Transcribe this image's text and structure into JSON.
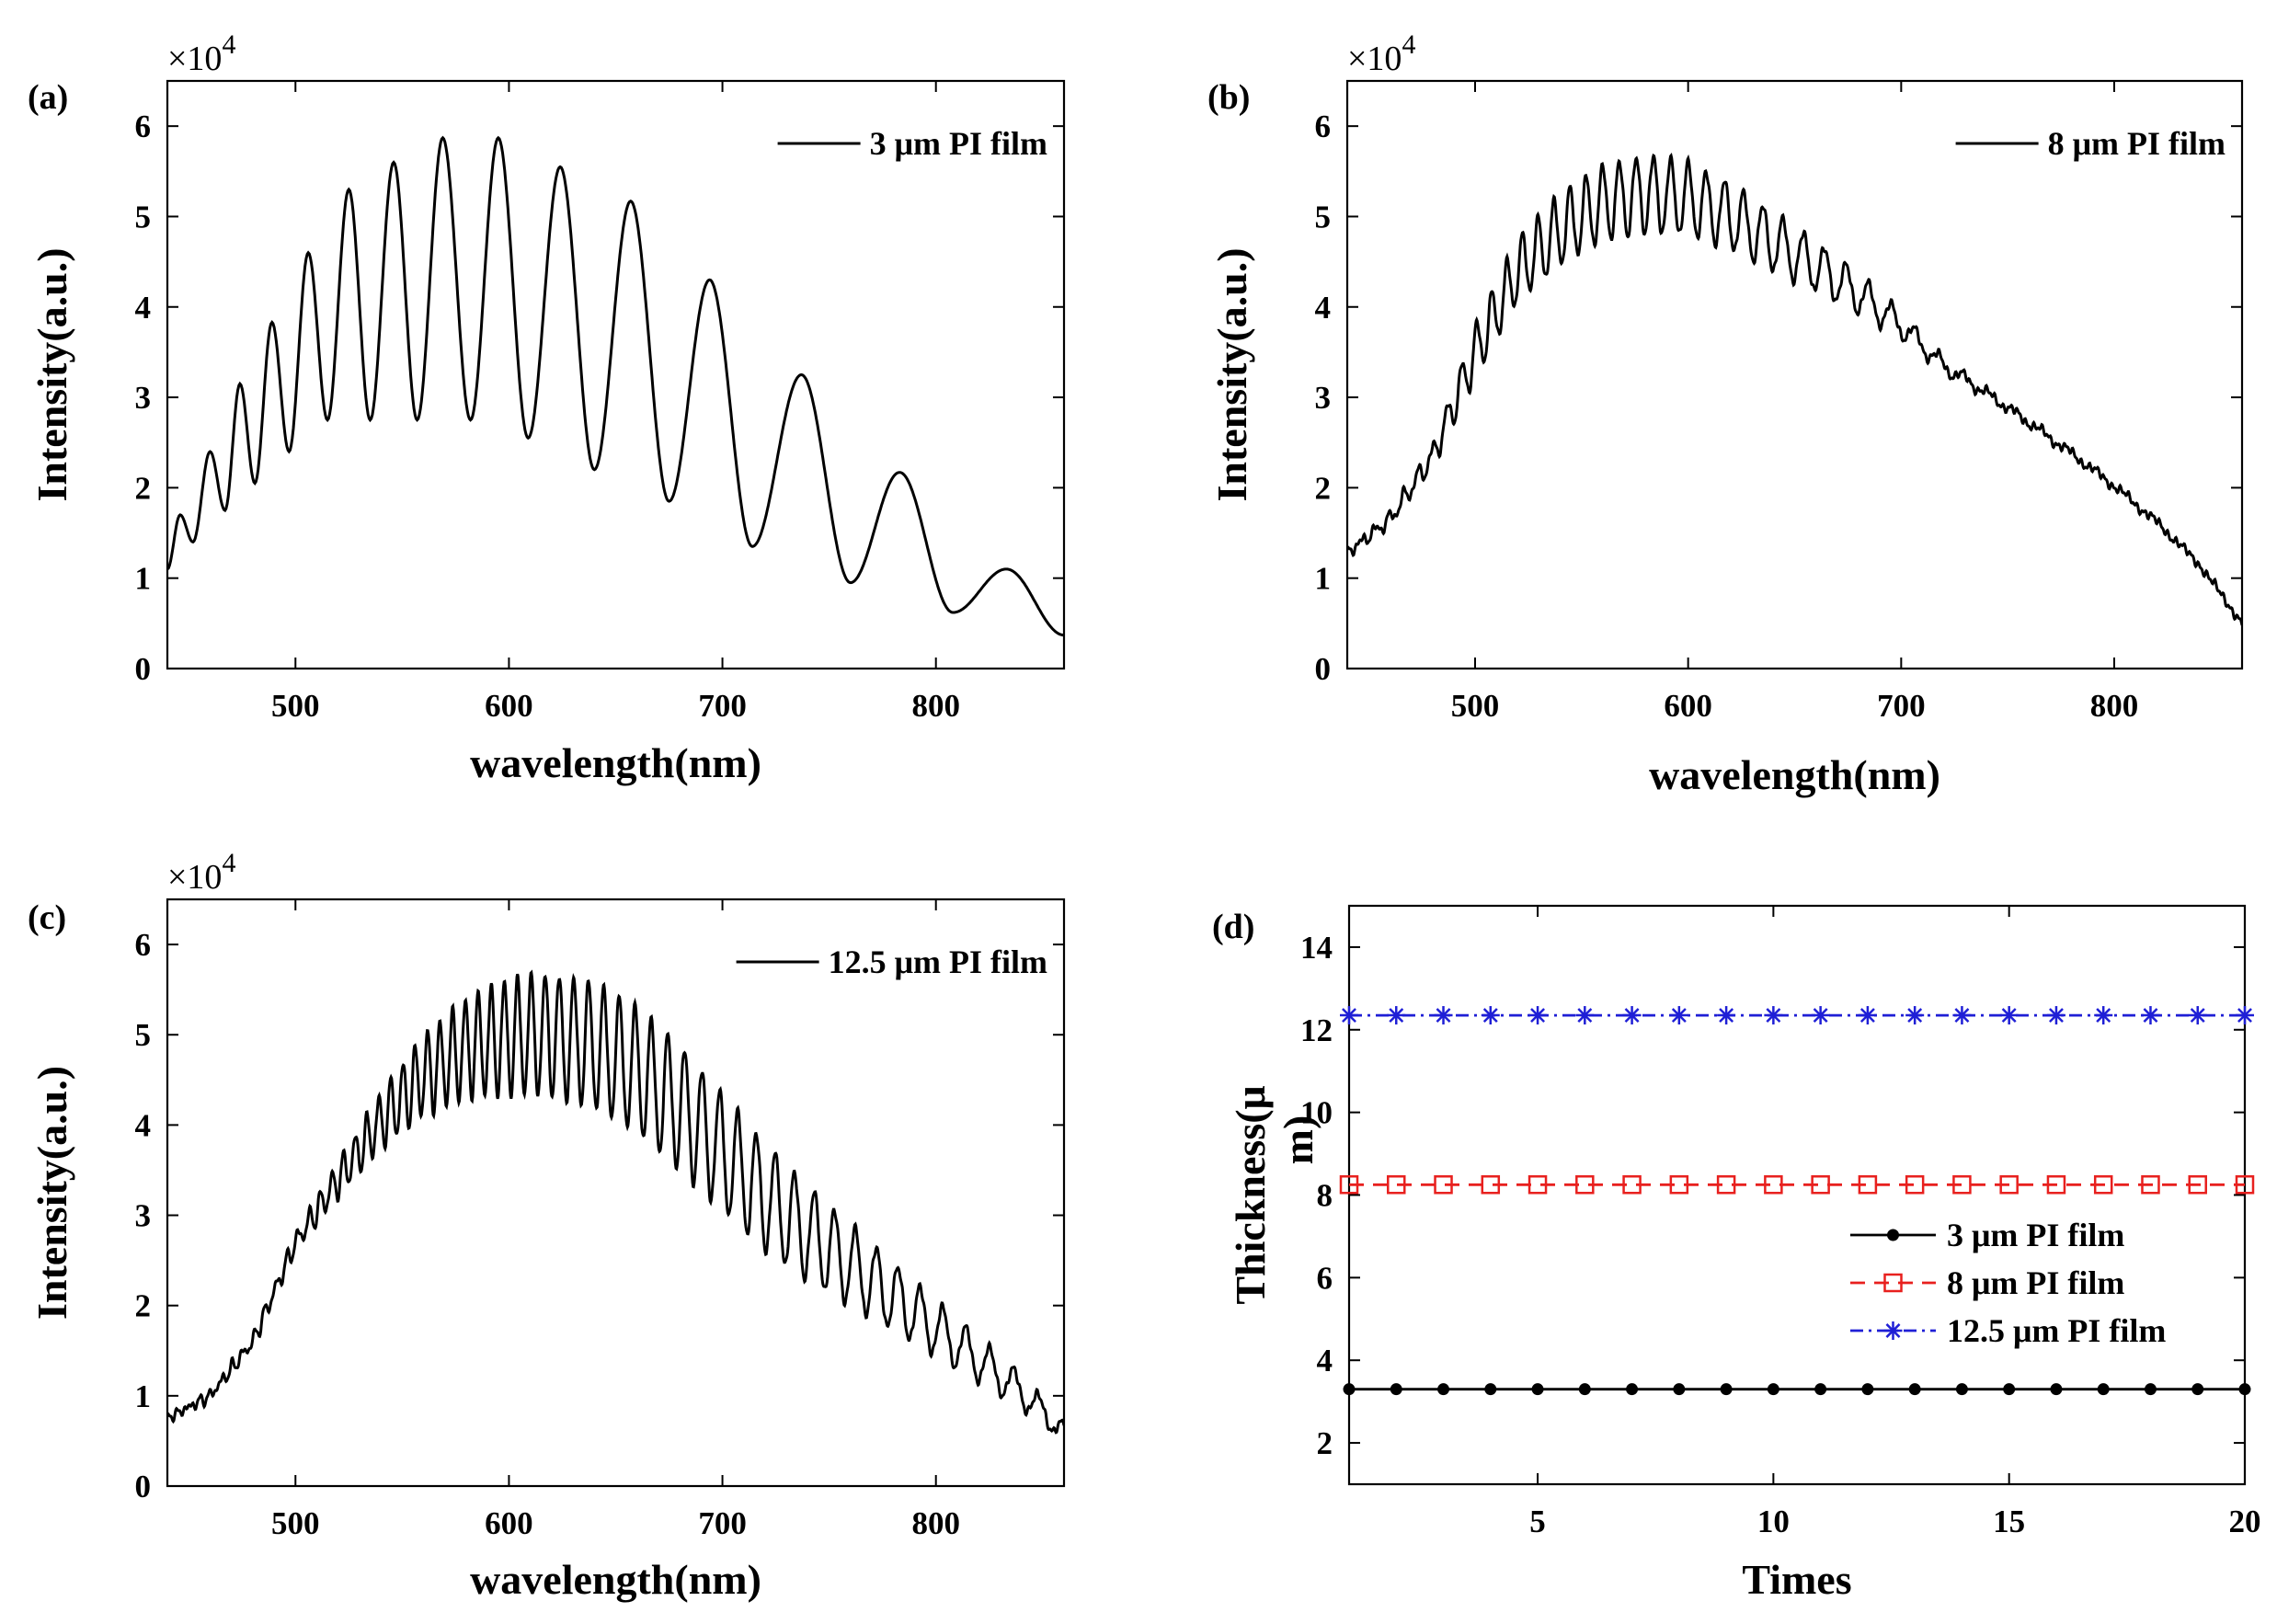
{
  "chart_data": [
    {
      "type": "line",
      "panel_label": "(a)",
      "xlabel": "wavelength(nm)",
      "ylabel": "Intensity(a.u.)",
      "y_multiplier": "×10",
      "y_multiplier_exp": "4",
      "xlim": [
        440,
        860
      ],
      "ylim": [
        0,
        6.5
      ],
      "xticks": [
        "500",
        "600",
        "700",
        "800"
      ],
      "xtick_values": [
        500,
        600,
        700,
        800
      ],
      "yticks": [
        "0",
        "1",
        "2",
        "3",
        "4",
        "5",
        "6"
      ],
      "ytick_values": [
        0,
        1,
        2,
        3,
        4,
        5,
        6
      ],
      "legend_position": "top-right",
      "series": [
        {
          "name": "3 μm PI film",
          "color": "#000000",
          "spectrum": {
            "peaks": [
              [
                446,
                1.7
              ],
              [
                460,
                2.4
              ],
              [
                474,
                3.15
              ],
              [
                489,
                3.83
              ],
              [
                506,
                4.6
              ],
              [
                525,
                5.3
              ],
              [
                546,
                5.6
              ],
              [
                569,
                5.87
              ],
              [
                595,
                5.87
              ],
              [
                624,
                5.55
              ],
              [
                657,
                5.17
              ],
              [
                694,
                4.3
              ],
              [
                737,
                3.25
              ],
              [
                783,
                2.17
              ],
              [
                833,
                1.1
              ]
            ],
            "valleys": [
              [
                440,
                1.1
              ],
              [
                452,
                1.4
              ],
              [
                467,
                1.75
              ],
              [
                481,
                2.05
              ],
              [
                497,
                2.4
              ],
              [
                515,
                2.75
              ],
              [
                535,
                2.75
              ],
              [
                557,
                2.75
              ],
              [
                582,
                2.75
              ],
              [
                609,
                2.55
              ],
              [
                640,
                2.2
              ],
              [
                675,
                1.85
              ],
              [
                714,
                1.35
              ],
              [
                760,
                0.95
              ],
              [
                808,
                0.62
              ],
              [
                860,
                0.37
              ]
            ]
          }
        }
      ]
    },
    {
      "type": "line",
      "panel_label": "(b)",
      "xlabel": "wavelength(nm)",
      "ylabel": "Intensity(a.u.)",
      "y_multiplier": "×10",
      "y_multiplier_exp": "4",
      "xlim": [
        440,
        860
      ],
      "ylim": [
        0,
        6.5
      ],
      "xticks": [
        "500",
        "600",
        "700",
        "800"
      ],
      "xtick_values": [
        500,
        600,
        700,
        800
      ],
      "yticks": [
        "0",
        "1",
        "2",
        "3",
        "4",
        "5",
        "6"
      ],
      "ytick_values": [
        0,
        1,
        2,
        3,
        4,
        5,
        6
      ],
      "legend_position": "top-right",
      "series": [
        {
          "name": "8 μm PI film",
          "color": "#000000",
          "spectrum": {
            "envelope": [
              [
                440,
                1.28
              ],
              [
                460,
                1.65
              ],
              [
                480,
                2.35
              ],
              [
                500,
                3.5
              ],
              [
                520,
                4.4
              ],
              [
                540,
                4.85
              ],
              [
                560,
                5.15
              ],
              [
                580,
                5.25
              ],
              [
                600,
                5.2
              ],
              [
                620,
                5.0
              ],
              [
                640,
                4.72
              ],
              [
                660,
                4.45
              ],
              [
                680,
                4.15
              ],
              [
                700,
                3.8
              ],
              [
                720,
                3.35
              ],
              [
                740,
                3.05
              ],
              [
                760,
                2.72
              ],
              [
                780,
                2.38
              ],
              [
                800,
                2.02
              ],
              [
                820,
                1.62
              ],
              [
                840,
                1.15
              ],
              [
                860,
                0.5
              ]
            ],
            "fringe": [
              [
                440,
                0.03
              ],
              [
                480,
                0.12
              ],
              [
                500,
                0.3
              ],
              [
                540,
                0.4
              ],
              [
                580,
                0.43
              ],
              [
                600,
                0.4
              ],
              [
                640,
                0.33
              ],
              [
                680,
                0.22
              ],
              [
                710,
                0.1
              ],
              [
                740,
                0.04
              ],
              [
                860,
                0.02
              ]
            ],
            "period": [
              [
                440,
                6.5
              ],
              [
                500,
                7.0
              ],
              [
                600,
                8.3
              ],
              [
                700,
                11.0
              ],
              [
                860,
                15.0
              ]
            ]
          }
        }
      ]
    },
    {
      "type": "line",
      "panel_label": "(c)",
      "xlabel": "wavelength(nm)",
      "ylabel": "Intensity(a.u.)",
      "y_multiplier": "×10",
      "y_multiplier_exp": "4",
      "xlim": [
        440,
        860
      ],
      "ylim": [
        0,
        6.5
      ],
      "xticks": [
        "500",
        "600",
        "700",
        "800"
      ],
      "xtick_values": [
        500,
        600,
        700,
        800
      ],
      "yticks": [
        "0",
        "1",
        "2",
        "3",
        "4",
        "5",
        "6"
      ],
      "ytick_values": [
        0,
        1,
        2,
        3,
        4,
        5,
        6
      ],
      "legend_position": "top-right",
      "series": [
        {
          "name": "12.5 μm PI film",
          "color": "#000000",
          "spectrum": {
            "envelope": [
              [
                440,
                0.75
              ],
              [
                460,
                1.0
              ],
              [
                480,
                1.6
              ],
              [
                500,
                2.7
              ],
              [
                520,
                3.4
              ],
              [
                540,
                4.05
              ],
              [
                560,
                4.55
              ],
              [
                580,
                4.85
              ],
              [
                600,
                4.98
              ],
              [
                620,
                5.0
              ],
              [
                640,
                4.88
              ],
              [
                660,
                4.6
              ],
              [
                680,
                4.2
              ],
              [
                700,
                3.7
              ],
              [
                720,
                3.2
              ],
              [
                740,
                2.8
              ],
              [
                760,
                2.45
              ],
              [
                780,
                2.1
              ],
              [
                800,
                1.75
              ],
              [
                820,
                1.4
              ],
              [
                840,
                1.05
              ],
              [
                860,
                0.6
              ]
            ],
            "fringe": [
              [
                440,
                0.02
              ],
              [
                500,
                0.1
              ],
              [
                530,
                0.25
              ],
              [
                560,
                0.45
              ],
              [
                600,
                0.65
              ],
              [
                640,
                0.7
              ],
              [
                680,
                0.7
              ],
              [
                720,
                0.6
              ],
              [
                760,
                0.45
              ],
              [
                800,
                0.3
              ],
              [
                840,
                0.18
              ],
              [
                860,
                0.1
              ]
            ],
            "period": [
              [
                440,
                5.0
              ],
              [
                500,
                5.2
              ],
              [
                600,
                6.2
              ],
              [
                700,
                8.4
              ],
              [
                860,
                12.0
              ]
            ]
          }
        }
      ]
    },
    {
      "type": "line",
      "panel_label": "(d)",
      "xlabel": "Times",
      "ylabel": "Thickness(μm)",
      "ylabel_line1": "Thickness(μ",
      "ylabel_line2": "m)",
      "xlim": [
        1,
        20
      ],
      "ylim": [
        1,
        15
      ],
      "xticks": [
        "5",
        "10",
        "15",
        "20"
      ],
      "xtick_values": [
        5,
        10,
        15,
        20
      ],
      "yticks": [
        "2",
        "4",
        "6",
        "8",
        "10",
        "12",
        "14"
      ],
      "ytick_values": [
        2,
        4,
        6,
        8,
        10,
        12,
        14
      ],
      "legend_position": "right",
      "x": [
        1,
        2,
        3,
        4,
        5,
        6,
        7,
        8,
        9,
        10,
        11,
        12,
        13,
        14,
        15,
        16,
        17,
        18,
        19,
        20
      ],
      "series": [
        {
          "name": "3 μm PI film",
          "color": "#000000",
          "marker": "dot",
          "dash": "",
          "values": [
            3.3,
            3.3,
            3.3,
            3.3,
            3.3,
            3.3,
            3.3,
            3.3,
            3.3,
            3.3,
            3.3,
            3.3,
            3.3,
            3.3,
            3.3,
            3.3,
            3.3,
            3.3,
            3.3,
            3.3
          ]
        },
        {
          "name": "8 μm PI film",
          "color": "#e8201e",
          "marker": "square",
          "dash": "16 10",
          "values": [
            8.25,
            8.25,
            8.25,
            8.25,
            8.25,
            8.25,
            8.25,
            8.25,
            8.25,
            8.25,
            8.25,
            8.25,
            8.25,
            8.25,
            8.25,
            8.25,
            8.25,
            8.25,
            8.25,
            8.25
          ]
        },
        {
          "name": "12.5 μm PI film",
          "color": "#1f1fd6",
          "marker": "star",
          "dash": "14 6 3 6",
          "values": [
            12.35,
            12.35,
            12.35,
            12.35,
            12.35,
            12.35,
            12.35,
            12.35,
            12.35,
            12.35,
            12.35,
            12.35,
            12.35,
            12.35,
            12.35,
            12.35,
            12.35,
            12.35,
            12.35,
            12.35
          ]
        }
      ]
    }
  ]
}
